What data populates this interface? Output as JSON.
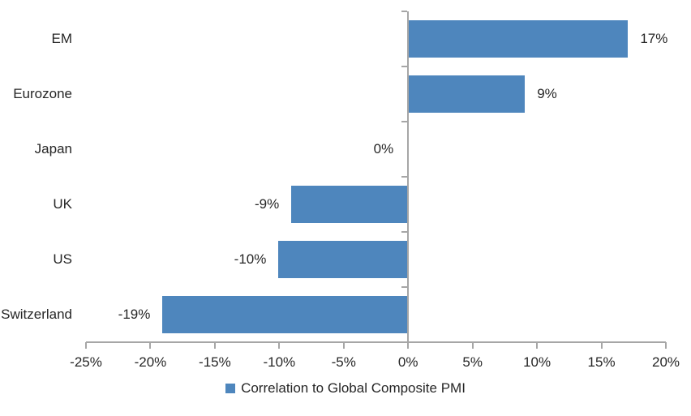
{
  "chart_data": {
    "type": "bar",
    "orientation": "horizontal",
    "categories": [
      "EM",
      "Eurozone",
      "Japan",
      "UK",
      "US",
      "Switzerland"
    ],
    "values": [
      17,
      9,
      0,
      -9,
      -10,
      -19
    ],
    "value_labels": [
      "17%",
      "9%",
      "0%",
      "-9%",
      "-10%",
      "-19%"
    ],
    "xlim": [
      -25,
      20
    ],
    "x_ticks": [
      {
        "value": -25,
        "label": "-25%"
      },
      {
        "value": -20,
        "label": "-20%"
      },
      {
        "value": -15,
        "label": "-15%"
      },
      {
        "value": -10,
        "label": "-10%"
      },
      {
        "value": -5,
        "label": "-5%"
      },
      {
        "value": 0,
        "label": "0%"
      },
      {
        "value": 5,
        "label": "5%"
      },
      {
        "value": 10,
        "label": "10%"
      },
      {
        "value": 15,
        "label": "15%"
      },
      {
        "value": 20,
        "label": "20%"
      }
    ],
    "grid": false,
    "legend": {
      "position": "bottom",
      "label": "Correlation to Global Composite PMI"
    },
    "colors": {
      "bar": "#4E86BD",
      "axis": "#A6A6A6",
      "text": "#262626"
    }
  }
}
